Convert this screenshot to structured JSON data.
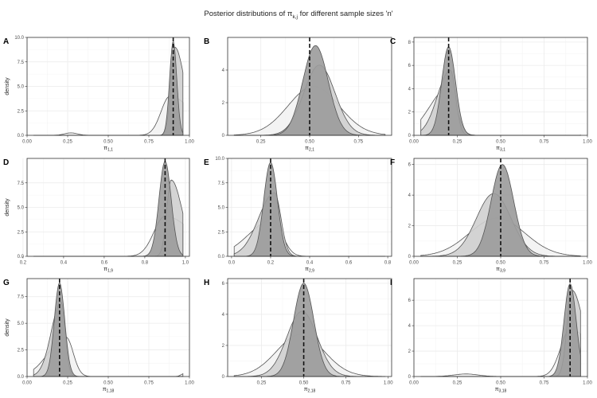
{
  "figure": {
    "title_pre": "Posterior distributions of π",
    "title_sub": "k,j",
    "title_post": " for different sample sizes 'n'"
  },
  "colors": {
    "fill_small_n": "#f2f2f2",
    "fill_mid_n": "#cfcfcf",
    "fill_large_n": "#9b9b9b",
    "outline": "#555555",
    "true_value_line": "#111111",
    "grid": "#ebebeb",
    "panel_border": "#333333"
  },
  "chart_data": [
    {
      "panel": "A",
      "type": "area",
      "ylabel": "density",
      "xlabel_base": "π",
      "xlabel_sub": "1,1",
      "true_value": 0.9,
      "xlim": [
        0,
        1
      ],
      "ylim": [
        0,
        10
      ],
      "xticks": [
        "0.00",
        "0.25",
        "0.50",
        "0.75",
        "1.00"
      ],
      "xtick_values": [
        0,
        0.25,
        0.5,
        0.75,
        1
      ],
      "yticks": [
        "0.0",
        "2.5",
        "5.0",
        "7.5",
        "10.0"
      ],
      "ytick_values": [
        0,
        2.5,
        5,
        7.5,
        10
      ],
      "series": [
        {
          "peak": 0.88,
          "sd": 0.1,
          "height": 4.0,
          "skew": -1,
          "bump": [
            0.27,
            0.04,
            0.25
          ]
        },
        {
          "peak": 0.91,
          "sd": 0.045,
          "height": 9.0,
          "skew": -1
        },
        {
          "peak": 0.9,
          "sd": 0.022,
          "height": 9.6,
          "skew": 0
        }
      ]
    },
    {
      "panel": "B",
      "type": "area",
      "ylabel": "",
      "xlabel_base": "π",
      "xlabel_sub": "2,1",
      "true_value": 0.5,
      "xlim": [
        0.08,
        0.92
      ],
      "ylim": [
        0,
        6
      ],
      "xticks": [
        "0.25",
        "0.50",
        "0.75"
      ],
      "xtick_values": [
        0.25,
        0.5,
        0.75
      ],
      "yticks": [
        "0",
        "2",
        "4"
      ],
      "ytick_values": [
        0,
        2,
        4
      ],
      "series": [
        {
          "peak": 0.52,
          "sd": 0.13,
          "height": 3.0,
          "skew": 0
        },
        {
          "peak": 0.55,
          "sd": 0.08,
          "height": 4.3,
          "skew": 0
        },
        {
          "peak": 0.53,
          "sd": 0.065,
          "height": 5.5,
          "skew": 0
        }
      ]
    },
    {
      "panel": "C",
      "type": "area",
      "ylabel": "",
      "xlabel_base": "π",
      "xlabel_sub": "3,1",
      "true_value": 0.2,
      "xlim": [
        0,
        1
      ],
      "ylim": [
        0,
        8.4
      ],
      "xticks": [
        "0.00",
        "0.25",
        "0.50",
        "0.75",
        "1.00"
      ],
      "xtick_values": [
        0,
        0.25,
        0.5,
        0.75,
        1
      ],
      "yticks": [
        "0",
        "2",
        "4",
        "6",
        "8"
      ],
      "ytick_values": [
        0,
        2,
        4,
        6,
        8
      ],
      "series": [
        {
          "peak": 0.2,
          "sd": 0.08,
          "height": 4.1,
          "skew": 1,
          "bump": [
            0.99,
            0.012,
            0.5
          ]
        },
        {
          "peak": 0.21,
          "sd": 0.055,
          "height": 5.6,
          "skew": 1
        },
        {
          "peak": 0.2,
          "sd": 0.04,
          "height": 7.6,
          "skew": 0
        }
      ]
    },
    {
      "panel": "D",
      "type": "area",
      "ylabel": "density",
      "xlabel_base": "π",
      "xlabel_sub": "1,9",
      "true_value": 0.9,
      "xlim": [
        0.22,
        1.02
      ],
      "ylim": [
        0,
        10
      ],
      "xticks": [
        "0.2",
        "0.4",
        "0.6",
        "0.8",
        "1.0"
      ],
      "xtick_values": [
        0.2,
        0.4,
        0.6,
        0.8,
        1.0
      ],
      "yticks": [
        "0.0",
        "2.5",
        "5.0",
        "7.5"
      ],
      "ytick_values": [
        0,
        2.5,
        5,
        7.5
      ],
      "series": [
        {
          "peak": 0.9,
          "sd": 0.1,
          "height": 4.1,
          "skew": -1
        },
        {
          "peak": 0.93,
          "sd": 0.04,
          "height": 7.8,
          "skew": -1
        },
        {
          "peak": 0.9,
          "sd": 0.03,
          "height": 9.7,
          "skew": 0
        }
      ]
    },
    {
      "panel": "E",
      "type": "area",
      "ylabel": "",
      "xlabel_base": "π",
      "xlabel_sub": "2,9",
      "true_value": 0.2,
      "xlim": [
        -0.02,
        0.82
      ],
      "ylim": [
        0,
        10
      ],
      "xticks": [
        "0.0",
        "0.2",
        "0.4",
        "0.6",
        "0.8"
      ],
      "xtick_values": [
        0,
        0.2,
        0.4,
        0.6,
        0.8
      ],
      "yticks": [
        "0.0",
        "2.5",
        "5.0",
        "7.5",
        "10.0"
      ],
      "ytick_values": [
        0,
        2.5,
        5,
        7.5,
        10
      ],
      "series": [
        {
          "peak": 0.21,
          "sd": 0.09,
          "height": 3.7,
          "skew": 1
        },
        {
          "peak": 0.22,
          "sd": 0.06,
          "height": 6.5,
          "skew": 1
        },
        {
          "peak": 0.2,
          "sd": 0.035,
          "height": 9.6,
          "skew": 0
        }
      ]
    },
    {
      "panel": "F",
      "type": "area",
      "ylabel": "",
      "xlabel_base": "π",
      "xlabel_sub": "3,9",
      "true_value": 0.5,
      "xlim": [
        0,
        1
      ],
      "ylim": [
        0,
        6.4
      ],
      "xticks": [
        "0.00",
        "0.25",
        "0.50",
        "0.75",
        "1.00"
      ],
      "xtick_values": [
        0,
        0.25,
        0.5,
        0.75,
        1
      ],
      "yticks": [
        "0",
        "2",
        "4",
        "6"
      ],
      "ytick_values": [
        0,
        2,
        4,
        6
      ],
      "series": [
        {
          "peak": 0.48,
          "sd": 0.16,
          "height": 2.5,
          "skew": 0
        },
        {
          "peak": 0.46,
          "sd": 0.1,
          "height": 4.1,
          "skew": 0
        },
        {
          "peak": 0.51,
          "sd": 0.065,
          "height": 6.0,
          "skew": 0
        }
      ]
    },
    {
      "panel": "G",
      "type": "area",
      "ylabel": "density",
      "xlabel_base": "π",
      "xlabel_sub": "1,18",
      "true_value": 0.2,
      "xlim": [
        0,
        1
      ],
      "ylim": [
        0,
        9.2
      ],
      "xticks": [
        "0.00",
        "0.25",
        "0.50",
        "0.75",
        "1.00"
      ],
      "xtick_values": [
        0,
        0.25,
        0.5,
        0.75,
        1
      ],
      "yticks": [
        "0.0",
        "2.5",
        "5.0",
        "7.5"
      ],
      "ytick_values": [
        0,
        2.5,
        5,
        7.5
      ],
      "series": [
        {
          "peak": 0.24,
          "sd": 0.08,
          "height": 3.7,
          "skew": 1,
          "bump": [
            0.97,
            0.02,
            0.3
          ]
        },
        {
          "peak": 0.21,
          "sd": 0.045,
          "height": 7.0,
          "skew": 1
        },
        {
          "peak": 0.2,
          "sd": 0.032,
          "height": 8.8,
          "skew": 0
        }
      ]
    },
    {
      "panel": "H",
      "type": "area",
      "ylabel": "",
      "xlabel_base": "π",
      "xlabel_sub": "2,18",
      "true_value": 0.5,
      "xlim": [
        0.05,
        1.02
      ],
      "ylim": [
        0,
        6.3
      ],
      "xticks": [
        "0.25",
        "0.50",
        "0.75",
        "1.00"
      ],
      "xtick_values": [
        0.25,
        0.5,
        0.75,
        1
      ],
      "yticks": [
        "0",
        "2",
        "4",
        "6"
      ],
      "ytick_values": [
        0,
        2,
        4,
        6
      ],
      "series": [
        {
          "peak": 0.48,
          "sd": 0.14,
          "height": 2.7,
          "skew": 0
        },
        {
          "peak": 0.49,
          "sd": 0.09,
          "height": 4.2,
          "skew": 0
        },
        {
          "peak": 0.5,
          "sd": 0.06,
          "height": 6.0,
          "skew": 0
        }
      ]
    },
    {
      "panel": "I",
      "type": "area",
      "ylabel": "",
      "xlabel_base": "π",
      "xlabel_sub": "3,18",
      "true_value": 0.9,
      "xlim": [
        0,
        1
      ],
      "ylim": [
        0,
        7.7
      ],
      "xticks": [
        "0.00",
        "0.25",
        "0.50",
        "0.75",
        "1.00"
      ],
      "xtick_values": [
        0,
        0.25,
        0.5,
        0.75,
        1
      ],
      "yticks": [
        "0",
        "2",
        "4",
        "6"
      ],
      "ytick_values": [
        0,
        2,
        4,
        6
      ],
      "series": [
        {
          "peak": 0.9,
          "sd": 0.1,
          "height": 3.7,
          "skew": -1,
          "bump": [
            0.3,
            0.07,
            0.2
          ]
        },
        {
          "peak": 0.91,
          "sd": 0.05,
          "height": 6.8,
          "skew": -1
        },
        {
          "peak": 0.9,
          "sd": 0.035,
          "height": 7.3,
          "skew": 0
        }
      ]
    }
  ]
}
